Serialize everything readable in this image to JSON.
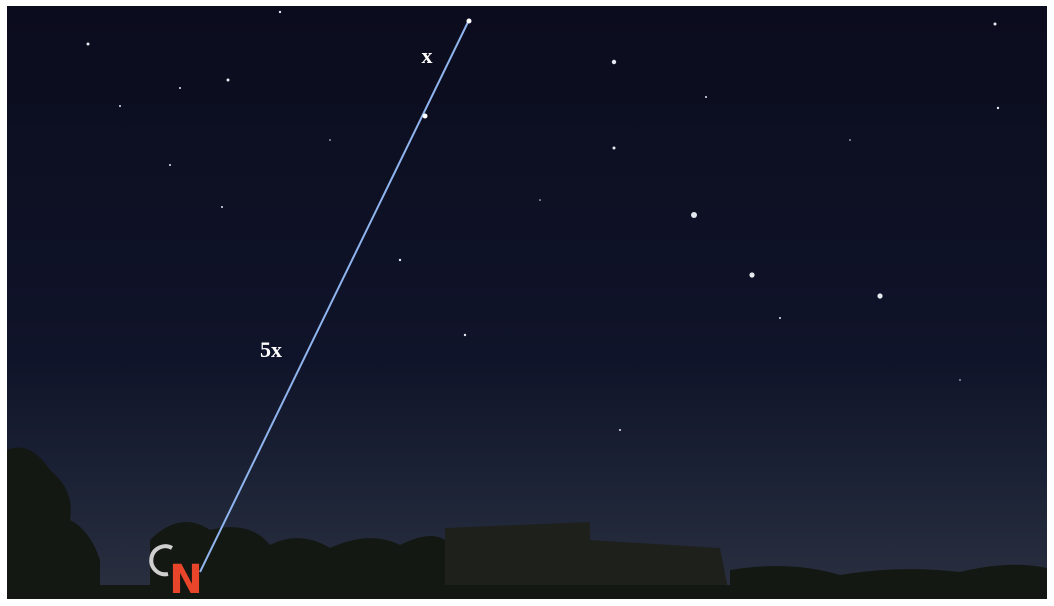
{
  "labels": {
    "short_segment": "x",
    "long_segment": "5x",
    "compass": "N"
  }
}
